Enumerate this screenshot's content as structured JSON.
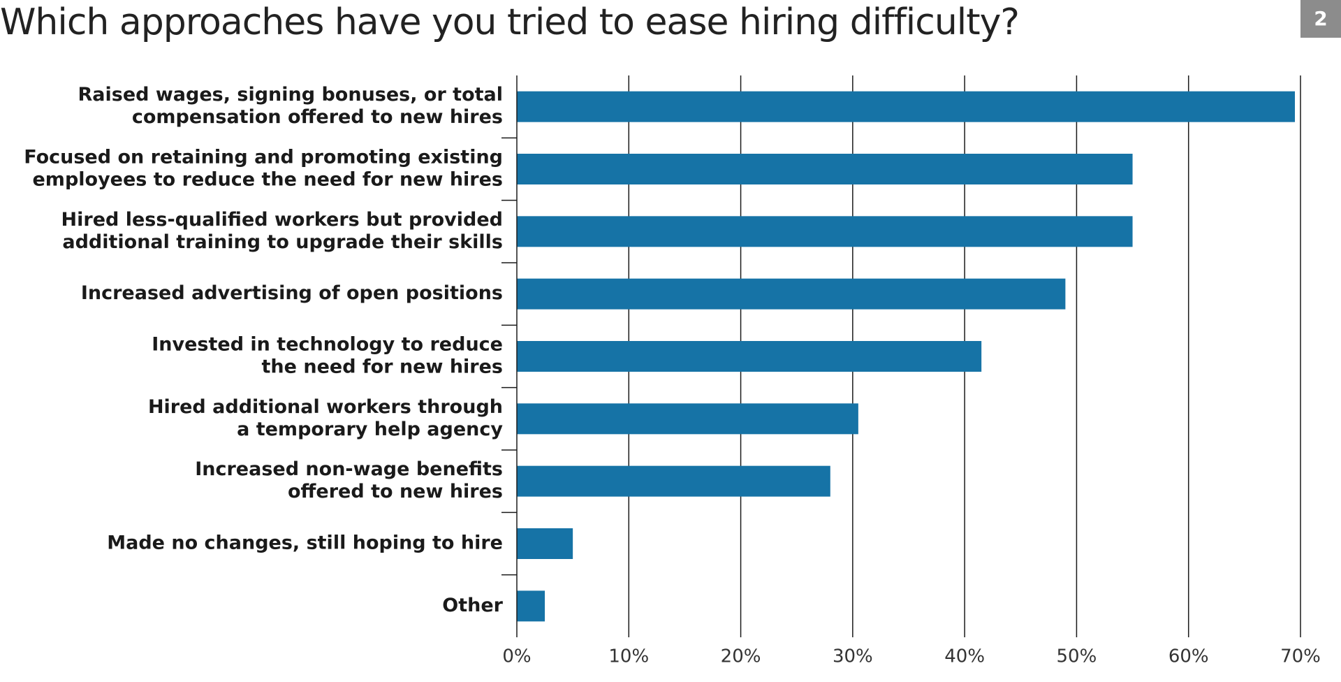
{
  "header": {
    "title": "Which approaches have you tried to ease hiring difficulty?",
    "page_number": "2"
  },
  "colors": {
    "bar": "#1673a6",
    "gridline": "#1a1a1a",
    "badge": "#8c8c8c"
  },
  "chart_data": {
    "type": "bar",
    "orientation": "horizontal",
    "title": "Which approaches have you tried to ease hiring difficulty?",
    "xlabel": "",
    "ylabel": "",
    "xlim": [
      0,
      70
    ],
    "grid": true,
    "categories": [
      [
        "Raised wages, signing bonuses, or total",
        "compensation offered to new hires"
      ],
      [
        "Focused on retaining and promoting existing",
        "employees to reduce the need for new hires"
      ],
      [
        "Hired less-qualified workers but provided",
        "additional training to upgrade their skills"
      ],
      [
        "Increased advertising of open positions"
      ],
      [
        "Invested in technology to reduce",
        "the need for new hires"
      ],
      [
        "Hired additional workers through",
        "a temporary help agency"
      ],
      [
        "Increased non-wage benefits",
        "offered to new hires"
      ],
      [
        "Made no changes, still hoping to hire"
      ],
      [
        "Other"
      ]
    ],
    "values": [
      69.5,
      55,
      55,
      49,
      41.5,
      30.5,
      28,
      5,
      2.5
    ],
    "x_ticks": [
      0,
      10,
      20,
      30,
      40,
      50,
      60,
      70
    ],
    "x_tick_labels": [
      "0%",
      "10%",
      "20%",
      "30%",
      "40%",
      "50%",
      "60%",
      "70%"
    ]
  }
}
